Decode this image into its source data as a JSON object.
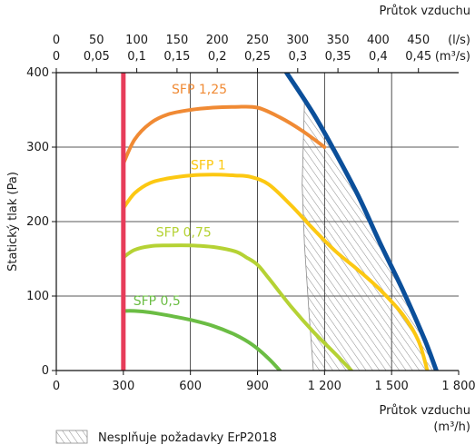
{
  "chart_data": {
    "type": "line",
    "xlabel_bottom": "Průtok vzduchu",
    "xunit_bottom": "(m³/h)",
    "xlabel_top": "Průtok vzduchu",
    "xunit_top_ls": "(l/s)",
    "xunit_top_m3s": "(m³/s)",
    "ylabel": "Statický tlak (Pa)",
    "xlim": [
      0,
      1800
    ],
    "ylim": [
      0,
      400
    ],
    "x_ticks": [
      {
        "value": 0,
        "label": "0"
      },
      {
        "value": 300,
        "label": "300"
      },
      {
        "value": 600,
        "label": "600"
      },
      {
        "value": 900,
        "label": "900"
      },
      {
        "value": 1200,
        "label": "1 200"
      },
      {
        "value": 1500,
        "label": "1 500"
      },
      {
        "value": 1800,
        "label": "1 800"
      }
    ],
    "y_ticks": [
      {
        "value": 0,
        "label": "0"
      },
      {
        "value": 100,
        "label": "100"
      },
      {
        "value": 200,
        "label": "200"
      },
      {
        "value": 300,
        "label": "300"
      },
      {
        "value": 400,
        "label": "400"
      }
    ],
    "top_ticks": [
      {
        "ls": "0",
        "m3s": "0",
        "x": 0
      },
      {
        "ls": "50",
        "m3s": "0,05",
        "x": 180
      },
      {
        "ls": "100",
        "m3s": "0,1",
        "x": 360
      },
      {
        "ls": "150",
        "m3s": "0,15",
        "x": 540
      },
      {
        "ls": "200",
        "m3s": "0,2",
        "x": 720
      },
      {
        "ls": "250",
        "m3s": "0,25",
        "x": 900
      },
      {
        "ls": "300",
        "m3s": "0,3",
        "x": 1080
      },
      {
        "ls": "350",
        "m3s": "0,35",
        "x": 1260
      },
      {
        "ls": "400",
        "m3s": "0,4",
        "x": 1440
      },
      {
        "ls": "450",
        "m3s": "0,45",
        "x": 1620
      }
    ],
    "series": [
      {
        "name": "SFP 1,25",
        "color": "#f08a34",
        "x": [
          300,
          350,
          420,
          500,
          600,
          700,
          800,
          900,
          1000,
          1100,
          1200
        ],
        "y": [
          278,
          310,
          332,
          344,
          350,
          353,
          354,
          353,
          340,
          322,
          300
        ],
        "label_at": [
          640,
          372
        ]
      },
      {
        "name": "SFP 1",
        "color": "#fcc812",
        "x": [
          300,
          350,
          420,
          500,
          600,
          700,
          800,
          870,
          950,
          1050,
          1150,
          1250,
          1350,
          1450,
          1550,
          1620,
          1660
        ],
        "y": [
          218,
          238,
          252,
          258,
          262,
          263,
          262,
          260,
          250,
          222,
          190,
          160,
          135,
          108,
          75,
          40,
          0
        ],
        "label_at": [
          680,
          270
        ]
      },
      {
        "name": "SFP 0,75",
        "color": "#b5d234",
        "x": [
          300,
          350,
          420,
          500,
          600,
          700,
          800,
          850,
          900,
          950,
          1050,
          1150,
          1250,
          1320
        ],
        "y": [
          152,
          162,
          167,
          168,
          168,
          166,
          160,
          152,
          142,
          124,
          86,
          52,
          22,
          0
        ],
        "label_at": [
          570,
          180
        ]
      },
      {
        "name": "SFP 0,5",
        "color": "#6bbd44",
        "x": [
          300,
          350,
          420,
          500,
          600,
          700,
          800,
          880,
          950,
          1000
        ],
        "y": [
          80,
          80,
          78,
          74,
          68,
          60,
          48,
          34,
          16,
          0
        ],
        "label_at": [
          450,
          88
        ]
      }
    ],
    "limit_min_flow": {
      "x": 300,
      "color": "#e73c5a"
    },
    "limit_max_curve": {
      "color": "#0b4f9a",
      "x": [
        1030,
        1150,
        1250,
        1350,
        1450,
        1550,
        1650,
        1700
      ],
      "y": [
        400,
        345,
        292,
        235,
        170,
        108,
        40,
        0
      ]
    },
    "hatched_region": {
      "boundary_x": [
        1110,
        1100,
        1110,
        1130,
        1150
      ],
      "boundary_y": [
        360,
        250,
        170,
        80,
        0
      ],
      "legend": "Nesplňuje požadavky ErP2018"
    },
    "grid": true
  }
}
